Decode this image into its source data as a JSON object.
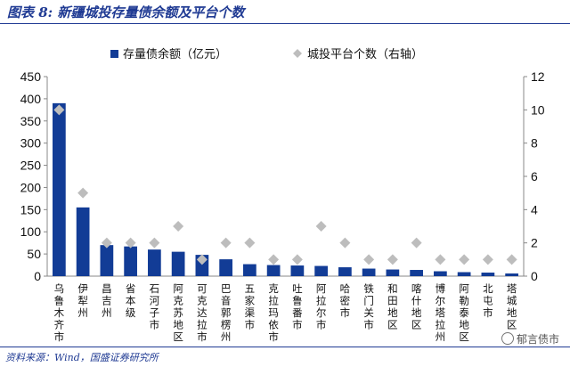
{
  "title": "图表 8:  新疆城投存量债余额及平台个数",
  "source": "资料来源：Wind，国盛证券研究所",
  "watermark": "郁言债市",
  "colors": {
    "bar": "#123c96",
    "marker": "#bdbdbd",
    "title": "#1f3a93"
  },
  "chart_data": {
    "type": "bar",
    "categories": [
      "乌鲁木齐市",
      "伊犁州",
      "昌吉州",
      "省本级",
      "石河子市",
      "阿克苏地区",
      "可克达拉市",
      "巴音郭楞州",
      "五家渠市",
      "克拉玛依市",
      "吐鲁番市",
      "阿拉尔市",
      "哈密市",
      "铁门关市",
      "和田地区",
      "喀什地区",
      "博尔塔拉州",
      "阿勒泰地区",
      "北屯市",
      "塔城地区"
    ],
    "series": [
      {
        "name": "存量债余额（亿元）",
        "type": "bar",
        "axis": "left",
        "values": [
          390,
          155,
          70,
          67,
          60,
          55,
          48,
          38,
          27,
          25,
          24,
          23,
          20,
          17,
          15,
          14,
          11,
          9,
          8,
          6
        ]
      },
      {
        "name": "城投平台个数（右轴）",
        "type": "scatter",
        "marker": "diamond",
        "axis": "right",
        "values": [
          10,
          5,
          2,
          2,
          2,
          3,
          1,
          2,
          2,
          1,
          1,
          3,
          2,
          1,
          1,
          2,
          1,
          1,
          1,
          1
        ]
      }
    ],
    "y_left": {
      "min": 0,
      "max": 450,
      "ticks": [
        0,
        50,
        100,
        150,
        200,
        250,
        300,
        350,
        400,
        450
      ]
    },
    "y_right": {
      "min": 0,
      "max": 12,
      "ticks": [
        0,
        2,
        4,
        6,
        8,
        10,
        12
      ]
    },
    "grid": false,
    "legend_position": "top"
  }
}
